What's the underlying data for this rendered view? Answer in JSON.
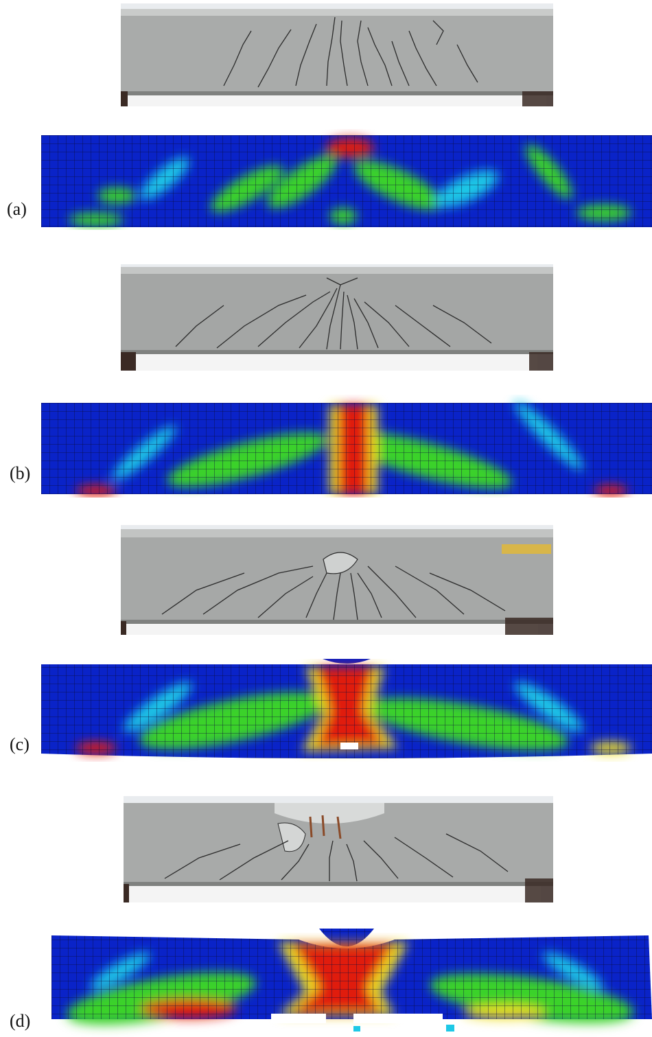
{
  "panels": [
    {
      "id": "a",
      "label": "(a)"
    },
    {
      "id": "b",
      "label": "(b)"
    },
    {
      "id": "c",
      "label": "(c)"
    },
    {
      "id": "d",
      "label": "(d)"
    }
  ],
  "colors": {
    "concrete": "#a9abaa",
    "concrete_dark": "#8c8e8d",
    "crack": "#2b2b2b",
    "support": "#3a2a24",
    "contour_low": "#0a23c8",
    "contour_mid_low": "#1ec8e6",
    "contour_mid": "#3ad22a",
    "contour_mid_high": "#f0e020",
    "contour_high": "#e01e0a",
    "mesh_line": "#0b0b3a"
  }
}
